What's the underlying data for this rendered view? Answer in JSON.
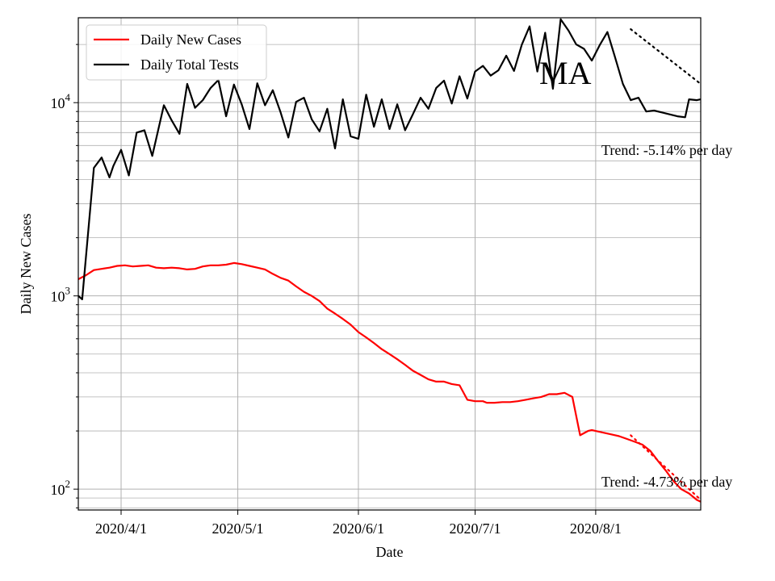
{
  "chart_data": {
    "type": "line",
    "title": "",
    "xlabel": "Date",
    "ylabel": "Daily New Cases",
    "y_scale": "log",
    "ylim": [
      78,
      27500
    ],
    "xlim": [
      "2020-03-21",
      "2020-08-28"
    ],
    "grid": true,
    "legend_position": "top-left",
    "x_ticks": [
      "2020-04-01",
      "2020-05-01",
      "2020-06-01",
      "2020-07-01",
      "2020-08-01"
    ],
    "x_tick_labels": [
      "2020/4/1",
      "2020/5/1",
      "2020/6/1",
      "2020/7/1",
      "2020/8/1"
    ],
    "y_tick_labels": [
      {
        "base": "10",
        "exp": "2",
        "value": 100
      },
      {
        "base": "10",
        "exp": "3",
        "value": 1000
      },
      {
        "base": "10",
        "exp": "4",
        "value": 10000
      }
    ],
    "annotations": {
      "state_label": "MA",
      "tests_trend": "Trend: -5.14% per day",
      "cases_trend": "Trend: -4.73% per day"
    },
    "series": [
      {
        "name": "Daily New Cases",
        "color": "#ff0000",
        "x": [
          "2020-03-21",
          "2020-03-23",
          "2020-03-25",
          "2020-03-27",
          "2020-03-29",
          "2020-03-31",
          "2020-04-02",
          "2020-04-04",
          "2020-04-06",
          "2020-04-08",
          "2020-04-10",
          "2020-04-12",
          "2020-04-14",
          "2020-04-16",
          "2020-04-18",
          "2020-04-20",
          "2020-04-22",
          "2020-04-24",
          "2020-04-26",
          "2020-04-28",
          "2020-04-30",
          "2020-05-02",
          "2020-05-04",
          "2020-05-06",
          "2020-05-08",
          "2020-05-10",
          "2020-05-12",
          "2020-05-14",
          "2020-05-16",
          "2020-05-18",
          "2020-05-20",
          "2020-05-22",
          "2020-05-24",
          "2020-05-26",
          "2020-05-28",
          "2020-05-30",
          "2020-06-01",
          "2020-06-03",
          "2020-06-05",
          "2020-06-07",
          "2020-06-09",
          "2020-06-11",
          "2020-06-13",
          "2020-06-15",
          "2020-06-17",
          "2020-06-19",
          "2020-06-21",
          "2020-06-23",
          "2020-06-25",
          "2020-06-27",
          "2020-06-29",
          "2020-07-01",
          "2020-07-03",
          "2020-07-04",
          "2020-07-06",
          "2020-07-08",
          "2020-07-10",
          "2020-07-12",
          "2020-07-14",
          "2020-07-16",
          "2020-07-18",
          "2020-07-20",
          "2020-07-22",
          "2020-07-24",
          "2020-07-26",
          "2020-07-28",
          "2020-07-30",
          "2020-07-31",
          "2020-08-01",
          "2020-08-03",
          "2020-08-05",
          "2020-08-07",
          "2020-08-09",
          "2020-08-11",
          "2020-08-13",
          "2020-08-15",
          "2020-08-17",
          "2020-08-19",
          "2020-08-21",
          "2020-08-23",
          "2020-08-25",
          "2020-08-27",
          "2020-08-28"
        ],
        "values": [
          1220,
          1280,
          1360,
          1380,
          1400,
          1430,
          1440,
          1420,
          1430,
          1440,
          1400,
          1390,
          1400,
          1390,
          1370,
          1380,
          1420,
          1440,
          1440,
          1450,
          1480,
          1460,
          1430,
          1400,
          1370,
          1300,
          1240,
          1200,
          1120,
          1050,
          1000,
          940,
          860,
          810,
          760,
          710,
          650,
          610,
          570,
          530,
          500,
          470,
          440,
          410,
          390,
          370,
          360,
          360,
          350,
          345,
          290,
          285,
          285,
          280,
          280,
          282,
          282,
          285,
          290,
          295,
          300,
          310,
          310,
          315,
          300,
          190,
          200,
          202,
          200,
          196,
          192,
          188,
          182,
          176,
          170,
          158,
          140,
          125,
          110,
          100,
          95,
          88,
          86
        ]
      },
      {
        "name": "Daily Total Tests",
        "color": "#000000",
        "x": [
          "2020-03-21",
          "2020-03-22",
          "2020-03-25",
          "2020-03-27",
          "2020-03-29",
          "2020-03-30",
          "2020-04-01",
          "2020-04-03",
          "2020-04-05",
          "2020-04-07",
          "2020-04-09",
          "2020-04-12",
          "2020-04-14",
          "2020-04-16",
          "2020-04-18",
          "2020-04-20",
          "2020-04-22",
          "2020-04-24",
          "2020-04-26",
          "2020-04-28",
          "2020-04-30",
          "2020-05-02",
          "2020-05-04",
          "2020-05-06",
          "2020-05-08",
          "2020-05-10",
          "2020-05-12",
          "2020-05-14",
          "2020-05-16",
          "2020-05-18",
          "2020-05-20",
          "2020-05-22",
          "2020-05-24",
          "2020-05-26",
          "2020-05-28",
          "2020-05-30",
          "2020-06-01",
          "2020-06-03",
          "2020-06-05",
          "2020-06-07",
          "2020-06-09",
          "2020-06-11",
          "2020-06-13",
          "2020-06-15",
          "2020-06-17",
          "2020-06-19",
          "2020-06-21",
          "2020-06-23",
          "2020-06-25",
          "2020-06-27",
          "2020-06-29",
          "2020-07-01",
          "2020-07-03",
          "2020-07-05",
          "2020-07-07",
          "2020-07-09",
          "2020-07-11",
          "2020-07-13",
          "2020-07-15",
          "2020-07-17",
          "2020-07-19",
          "2020-07-21",
          "2020-07-23",
          "2020-07-25",
          "2020-07-27",
          "2020-07-29",
          "2020-07-31",
          "2020-08-02",
          "2020-08-04",
          "2020-08-06",
          "2020-08-08",
          "2020-08-10",
          "2020-08-12",
          "2020-08-14",
          "2020-08-16",
          "2020-08-18",
          "2020-08-20",
          "2020-08-22",
          "2020-08-24",
          "2020-08-25",
          "2020-08-27",
          "2020-08-28"
        ],
        "values": [
          1000,
          960,
          4600,
          5200,
          4100,
          4700,
          5700,
          4200,
          7000,
          7200,
          5300,
          9700,
          8100,
          6900,
          12500,
          9400,
          10300,
          11900,
          13100,
          8500,
          12400,
          9800,
          7300,
          12600,
          9700,
          11600,
          8900,
          6600,
          10100,
          10600,
          8200,
          7100,
          9300,
          5800,
          10400,
          6700,
          6500,
          11000,
          7500,
          10400,
          7300,
          9800,
          7200,
          8700,
          10600,
          9300,
          11900,
          13000,
          9900,
          13700,
          10500,
          14500,
          15500,
          13800,
          14700,
          17500,
          14600,
          19900,
          24800,
          14500,
          23000,
          11800,
          27000,
          23600,
          20000,
          19000,
          16500,
          19800,
          23200,
          17100,
          12500,
          10300,
          10600,
          9000,
          9100,
          8900,
          8700,
          8500,
          8400,
          10400,
          10300,
          10400
        ]
      }
    ],
    "trend_lines": [
      {
        "series": "Daily Total Tests",
        "x": [
          "2020-08-10",
          "2020-08-28"
        ],
        "values": [
          24000,
          12500
        ]
      },
      {
        "series": "Daily New Cases",
        "x": [
          "2020-08-10",
          "2020-08-28"
        ],
        "values": [
          190,
          88
        ]
      }
    ]
  }
}
